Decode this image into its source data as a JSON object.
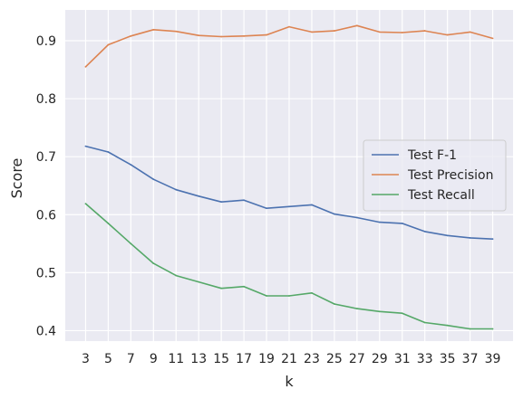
{
  "chart_data": {
    "type": "line",
    "title": "",
    "xlabel": "k",
    "ylabel": "Score",
    "x": [
      3,
      5,
      7,
      9,
      11,
      13,
      15,
      17,
      19,
      21,
      23,
      25,
      27,
      29,
      31,
      33,
      35,
      37,
      39
    ],
    "xticks": [
      "3",
      "5",
      "7",
      "9",
      "11",
      "13",
      "15",
      "17",
      "19",
      "21",
      "23",
      "25",
      "27",
      "29",
      "31",
      "33",
      "35",
      "37",
      "39"
    ],
    "yticks": [
      "0.4",
      "0.5",
      "0.6",
      "0.7",
      "0.8",
      "0.9"
    ],
    "ytick_values": [
      0.4,
      0.5,
      0.6,
      0.7,
      0.8,
      0.9
    ],
    "xlim": [
      1.2,
      40.8
    ],
    "ylim": [
      0.382,
      0.953
    ],
    "grid": true,
    "legend_position": "center-right",
    "series": [
      {
        "name": "Test F-1",
        "color": "#4c72b0",
        "values": [
          0.718,
          0.708,
          0.686,
          0.661,
          0.643,
          0.632,
          0.622,
          0.625,
          0.611,
          0.614,
          0.617,
          0.601,
          0.595,
          0.587,
          0.585,
          0.571,
          0.564,
          0.56,
          0.558
        ]
      },
      {
        "name": "Test Precision",
        "color": "#dd8452",
        "values": [
          0.855,
          0.893,
          0.908,
          0.919,
          0.916,
          0.909,
          0.907,
          0.908,
          0.91,
          0.924,
          0.915,
          0.917,
          0.926,
          0.915,
          0.914,
          0.917,
          0.91,
          0.915,
          0.904
        ]
      },
      {
        "name": "Test Recall",
        "color": "#55a868",
        "values": [
          0.619,
          0.585,
          0.55,
          0.516,
          0.495,
          0.484,
          0.473,
          0.476,
          0.46,
          0.46,
          0.465,
          0.446,
          0.438,
          0.433,
          0.43,
          0.414,
          0.409,
          0.403,
          0.403
        ]
      }
    ]
  }
}
